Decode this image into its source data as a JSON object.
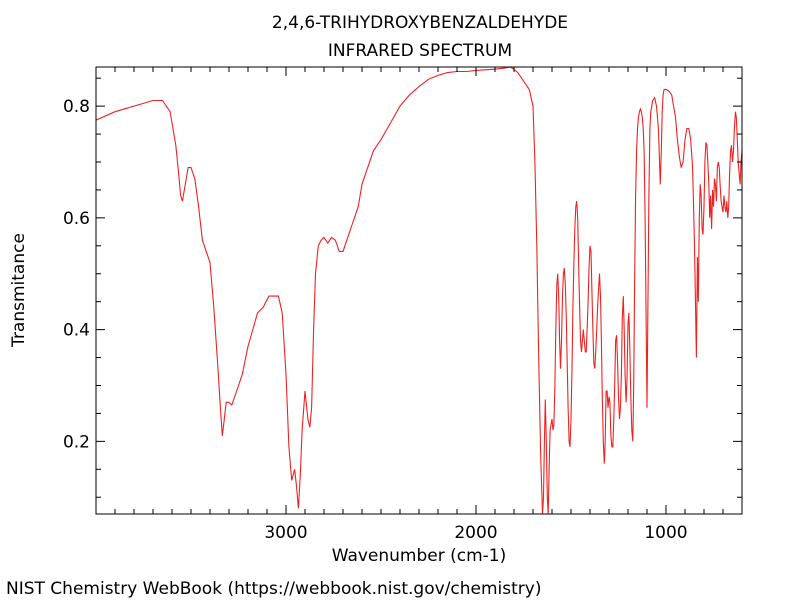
{
  "chart_data": {
    "type": "line",
    "title": "2,4,6-TRIHYDROXYBENZALDEHYDE",
    "subtitle": "INFRARED SPECTRUM",
    "xlabel": "Wavenumber (cm-1)",
    "ylabel": "Transmitance",
    "x_reversed": true,
    "xlim": [
      4000,
      600
    ],
    "ylim": [
      0.07,
      0.87
    ],
    "x_ticks": [
      3000,
      2000,
      1000
    ],
    "y_ticks": [
      0.2,
      0.4,
      0.6,
      0.8
    ],
    "grid": false,
    "line_color": "#ee2222",
    "series": [
      {
        "x": [
          4000,
          3900,
          3800,
          3700,
          3650,
          3610,
          3580,
          3565,
          3555,
          3545,
          3530,
          3515,
          3500,
          3480,
          3460,
          3440,
          3420,
          3400,
          3380,
          3360,
          3345,
          3335,
          3325,
          3315,
          3300,
          3285,
          3270,
          3250,
          3230,
          3200,
          3150,
          3120,
          3090,
          3060,
          3040,
          3020,
          3000,
          2985,
          2970,
          2955,
          2945,
          2935,
          2925,
          2915,
          2900,
          2885,
          2875,
          2865,
          2855,
          2845,
          2830,
          2815,
          2800,
          2780,
          2760,
          2740,
          2720,
          2700,
          2680,
          2660,
          2640,
          2620,
          2600,
          2570,
          2540,
          2500,
          2450,
          2400,
          2350,
          2300,
          2250,
          2200,
          2150,
          2100,
          2050,
          2000,
          1950,
          1900,
          1850,
          1820,
          1800,
          1780,
          1760,
          1740,
          1720,
          1700,
          1690,
          1680,
          1670,
          1660,
          1650,
          1645,
          1640,
          1635,
          1630,
          1625,
          1620,
          1615,
          1610,
          1600,
          1595,
          1590,
          1585,
          1580,
          1575,
          1570,
          1565,
          1560,
          1555,
          1550,
          1545,
          1540,
          1535,
          1530,
          1525,
          1520,
          1515,
          1510,
          1505,
          1500,
          1495,
          1490,
          1485,
          1480,
          1475,
          1470,
          1465,
          1460,
          1455,
          1450,
          1445,
          1440,
          1435,
          1430,
          1425,
          1420,
          1415,
          1410,
          1405,
          1400,
          1395,
          1390,
          1385,
          1380,
          1375,
          1370,
          1365,
          1360,
          1355,
          1350,
          1345,
          1340,
          1335,
          1330,
          1325,
          1320,
          1315,
          1310,
          1305,
          1300,
          1295,
          1290,
          1285,
          1280,
          1275,
          1270,
          1265,
          1260,
          1255,
          1250,
          1245,
          1240,
          1235,
          1230,
          1225,
          1220,
          1215,
          1210,
          1205,
          1200,
          1195,
          1190,
          1185,
          1180,
          1175,
          1170,
          1165,
          1160,
          1155,
          1150,
          1145,
          1140,
          1135,
          1130,
          1125,
          1120,
          1115,
          1110,
          1105,
          1100,
          1095,
          1090,
          1085,
          1080,
          1075,
          1070,
          1060,
          1050,
          1040,
          1030,
          1025,
          1020,
          1015,
          1010,
          1005,
          1000,
          990,
          980,
          970,
          960,
          950,
          940,
          930,
          920,
          910,
          900,
          890,
          880,
          870,
          860,
          850,
          840,
          835,
          830,
          825,
          820,
          815,
          810,
          805,
          800,
          795,
          790,
          785,
          780,
          775,
          770,
          765,
          760,
          755,
          750,
          745,
          740,
          735,
          730,
          725,
          720,
          715,
          710,
          705,
          700,
          695,
          690,
          685,
          680,
          675,
          670,
          665,
          660,
          655,
          650,
          645,
          640,
          635,
          630,
          625,
          620,
          615,
          610,
          605,
          600
        ],
        "values": [
          0.775,
          0.79,
          0.8,
          0.81,
          0.81,
          0.79,
          0.73,
          0.68,
          0.64,
          0.63,
          0.66,
          0.69,
          0.69,
          0.67,
          0.62,
          0.56,
          0.54,
          0.52,
          0.44,
          0.34,
          0.26,
          0.21,
          0.24,
          0.27,
          0.27,
          0.265,
          0.28,
          0.3,
          0.32,
          0.37,
          0.43,
          0.44,
          0.46,
          0.46,
          0.46,
          0.43,
          0.32,
          0.19,
          0.13,
          0.15,
          0.12,
          0.08,
          0.14,
          0.22,
          0.29,
          0.24,
          0.225,
          0.26,
          0.4,
          0.5,
          0.55,
          0.56,
          0.565,
          0.555,
          0.565,
          0.56,
          0.54,
          0.54,
          0.56,
          0.58,
          0.6,
          0.62,
          0.66,
          0.69,
          0.72,
          0.74,
          0.77,
          0.8,
          0.82,
          0.835,
          0.848,
          0.855,
          0.86,
          0.862,
          0.862,
          0.864,
          0.865,
          0.866,
          0.868,
          0.87,
          0.866,
          0.86,
          0.85,
          0.84,
          0.83,
          0.8,
          0.7,
          0.55,
          0.35,
          0.18,
          0.07,
          0.1,
          0.2,
          0.275,
          0.2,
          0.1,
          0.07,
          0.15,
          0.22,
          0.24,
          0.22,
          0.23,
          0.3,
          0.4,
          0.48,
          0.5,
          0.46,
          0.38,
          0.33,
          0.38,
          0.46,
          0.5,
          0.51,
          0.48,
          0.42,
          0.34,
          0.26,
          0.2,
          0.19,
          0.24,
          0.33,
          0.44,
          0.52,
          0.58,
          0.62,
          0.63,
          0.6,
          0.52,
          0.45,
          0.38,
          0.36,
          0.38,
          0.4,
          0.38,
          0.36,
          0.36,
          0.4,
          0.45,
          0.51,
          0.55,
          0.54,
          0.47,
          0.4,
          0.34,
          0.33,
          0.36,
          0.4,
          0.44,
          0.47,
          0.5,
          0.46,
          0.38,
          0.28,
          0.2,
          0.16,
          0.2,
          0.29,
          0.29,
          0.26,
          0.28,
          0.27,
          0.21,
          0.19,
          0.19,
          0.24,
          0.3,
          0.38,
          0.39,
          0.34,
          0.28,
          0.24,
          0.26,
          0.32,
          0.42,
          0.46,
          0.4,
          0.32,
          0.27,
          0.31,
          0.41,
          0.43,
          0.36,
          0.28,
          0.22,
          0.2,
          0.3,
          0.48,
          0.64,
          0.72,
          0.76,
          0.78,
          0.79,
          0.795,
          0.79,
          0.78,
          0.76,
          0.72,
          0.6,
          0.44,
          0.26,
          0.44,
          0.64,
          0.76,
          0.79,
          0.8,
          0.81,
          0.815,
          0.8,
          0.76,
          0.66,
          0.72,
          0.79,
          0.82,
          0.83,
          0.83,
          0.83,
          0.828,
          0.825,
          0.82,
          0.8,
          0.78,
          0.74,
          0.71,
          0.69,
          0.7,
          0.74,
          0.76,
          0.76,
          0.74,
          0.69,
          0.55,
          0.35,
          0.53,
          0.45,
          0.6,
          0.66,
          0.64,
          0.58,
          0.57,
          0.62,
          0.7,
          0.735,
          0.73,
          0.7,
          0.66,
          0.6,
          0.64,
          0.58,
          0.65,
          0.62,
          0.67,
          0.66,
          0.63,
          0.69,
          0.7,
          0.69,
          0.66,
          0.63,
          0.62,
          0.61,
          0.64,
          0.62,
          0.61,
          0.63,
          0.6,
          0.62,
          0.68,
          0.72,
          0.73,
          0.7,
          0.72,
          0.76,
          0.79,
          0.78,
          0.74,
          0.7,
          0.68,
          0.66,
          0.7,
          0.72
        ]
      }
    ]
  },
  "footer": {
    "credit": "NIST Chemistry WebBook (https://webbook.nist.gov/chemistry)"
  }
}
